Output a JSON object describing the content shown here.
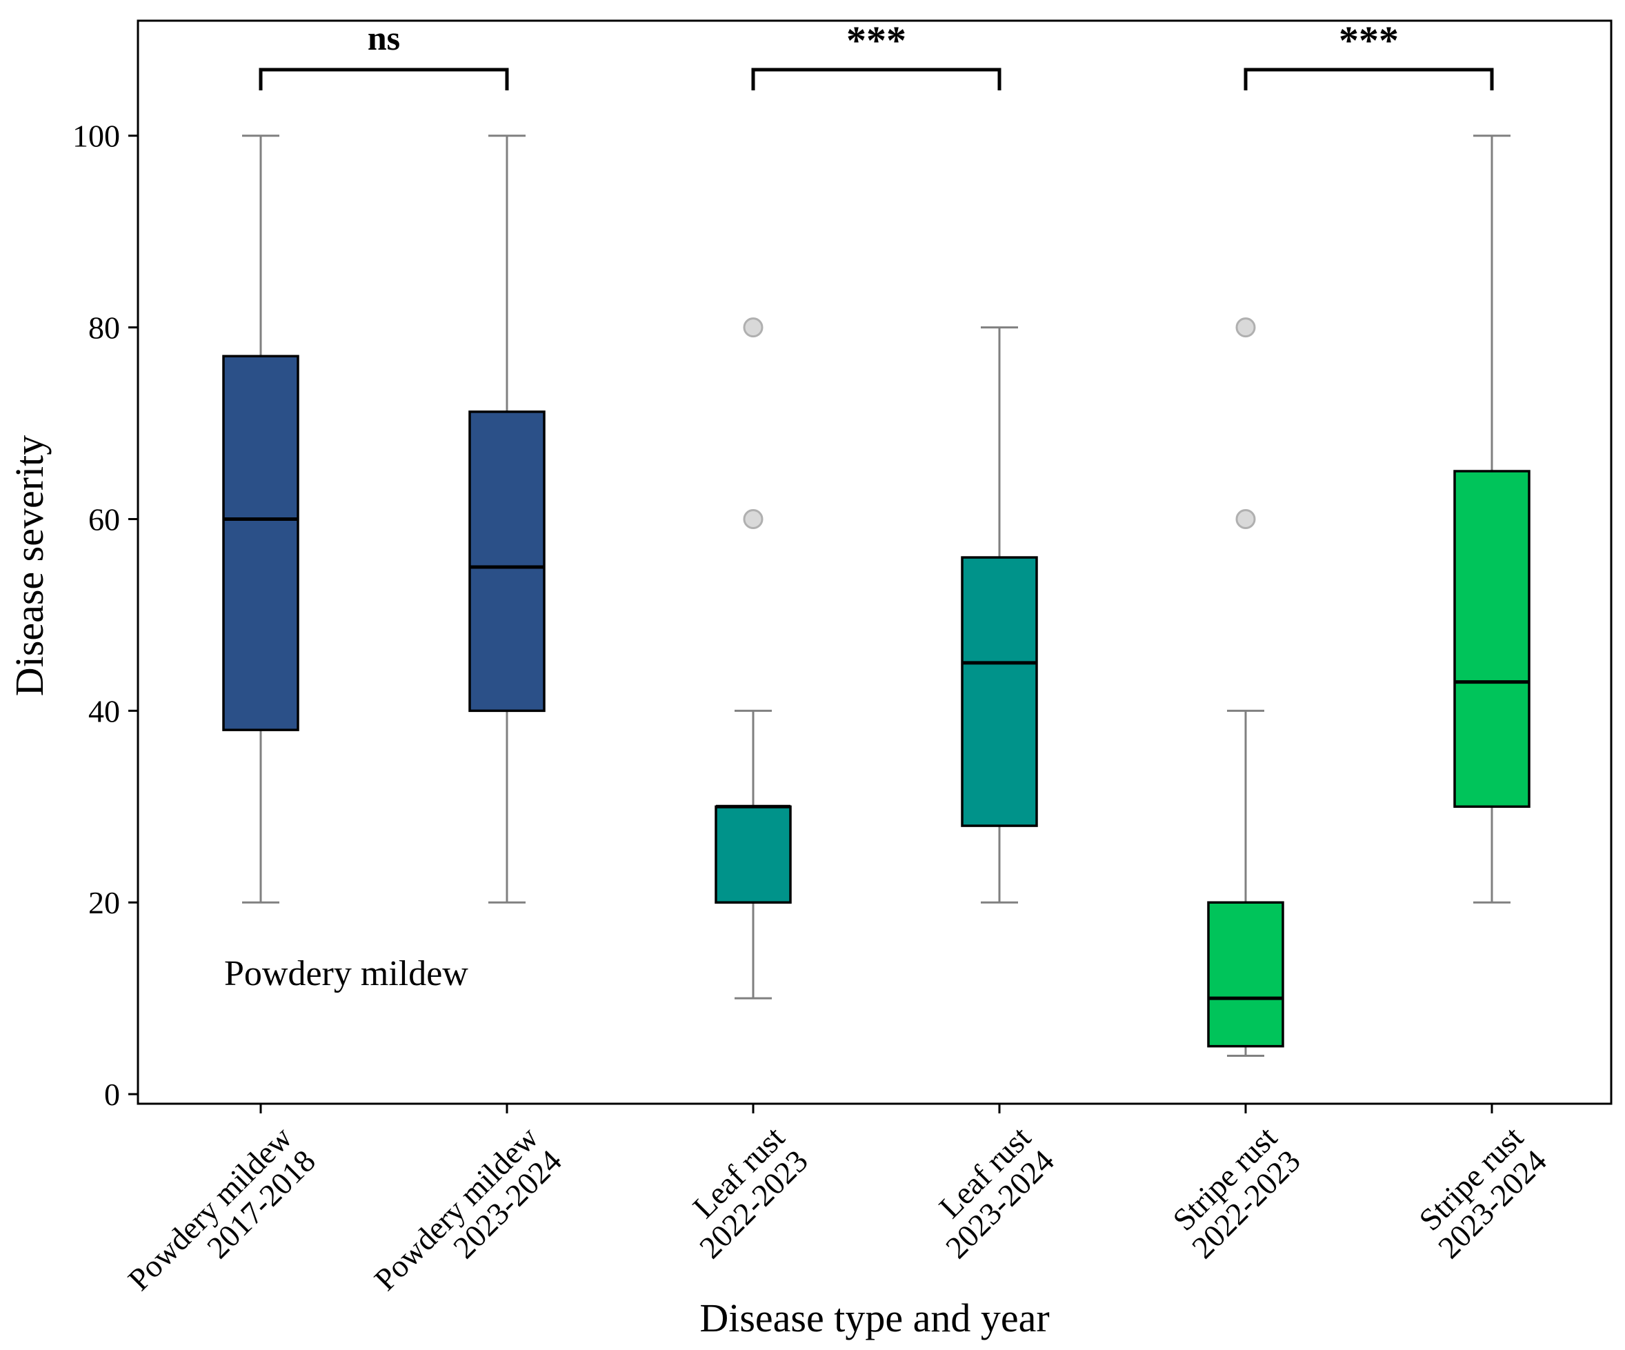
{
  "chart_data": {
    "type": "box",
    "title": "",
    "xlabel": "Disease type and year",
    "ylabel": "Disease severity",
    "ylim": [
      -1,
      112
    ],
    "yticks": [
      0,
      20,
      40,
      60,
      80,
      100
    ],
    "annotation": "Powdery mildew",
    "categories": [
      {
        "line1": "Powdery mildew",
        "line2": "2017-2018"
      },
      {
        "line1": "Powdery mildew",
        "line2": "2023-2024"
      },
      {
        "line1": "Leaf rust",
        "line2": "2022-2023"
      },
      {
        "line1": "Leaf rust",
        "line2": "2023-2024"
      },
      {
        "line1": "Stripe rust",
        "line2": "2022-2023"
      },
      {
        "line1": "Stripe rust",
        "line2": "2023-2024"
      }
    ],
    "boxes": [
      {
        "whisker_low": 20,
        "q1": 38,
        "median": 60,
        "q3": 77,
        "whisker_high": 100,
        "outliers": [],
        "color": "#2b5088"
      },
      {
        "whisker_low": 20,
        "q1": 40,
        "median": 55,
        "q3": 71.2,
        "whisker_high": 100,
        "outliers": [],
        "color": "#2b5088"
      },
      {
        "whisker_low": 10,
        "q1": 20,
        "median": 30,
        "q3": 30,
        "whisker_high": 40,
        "outliers": [
          60,
          80
        ],
        "color": "#00938a"
      },
      {
        "whisker_low": 20,
        "q1": 28,
        "median": 45,
        "q3": 56,
        "whisker_high": 80,
        "outliers": [],
        "color": "#00938a"
      },
      {
        "whisker_low": 4,
        "q1": 5,
        "median": 10,
        "q3": 20,
        "whisker_high": 40,
        "outliers": [
          60,
          80
        ],
        "color": "#00c45a"
      },
      {
        "whisker_low": 20,
        "q1": 30,
        "median": 43,
        "q3": 65,
        "whisker_high": 100,
        "outliers": [],
        "color": "#00c45a"
      }
    ],
    "significance": [
      {
        "from": 0,
        "to": 1,
        "label": "ns"
      },
      {
        "from": 2,
        "to": 3,
        "label": "***"
      },
      {
        "from": 4,
        "to": 5,
        "label": "***"
      }
    ],
    "colors": {
      "whisker": "#808080",
      "outlier_fill": "#d9d9d9",
      "outlier_stroke": "#b0b0b0",
      "axis": "#000000"
    }
  }
}
